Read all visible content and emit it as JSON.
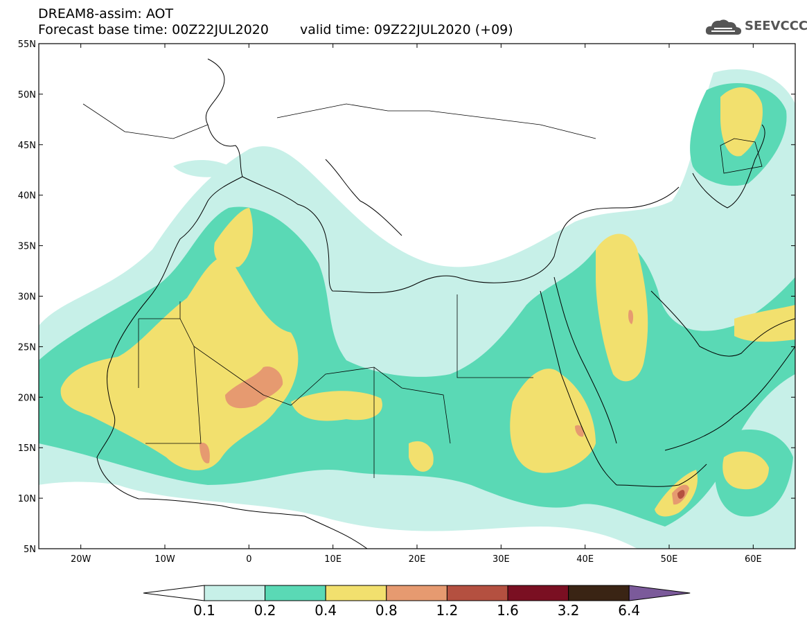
{
  "header": {
    "line1": "DREAM8-assim: AOT",
    "base_time": "Forecast base time: 00Z22JUL2020",
    "valid_time": "valid time: 09Z22JUL2020 (+09)"
  },
  "logo": {
    "text": "SEEVCCC",
    "icon": "cloud-icon"
  },
  "map": {
    "lon_range": [
      -25,
      65
    ],
    "lat_range": [
      5,
      55
    ],
    "lat_ticks": [
      {
        "value": 55,
        "label": "55N"
      },
      {
        "value": 50,
        "label": "50N"
      },
      {
        "value": 45,
        "label": "45N"
      },
      {
        "value": 40,
        "label": "40N"
      },
      {
        "value": 35,
        "label": "35N"
      },
      {
        "value": 30,
        "label": "30N"
      },
      {
        "value": 25,
        "label": "25N"
      },
      {
        "value": 20,
        "label": "20N"
      },
      {
        "value": 15,
        "label": "15N"
      },
      {
        "value": 10,
        "label": "10N"
      },
      {
        "value": 5,
        "label": "5N"
      }
    ],
    "lon_ticks": [
      {
        "value": -20,
        "label": "20W"
      },
      {
        "value": -10,
        "label": "10W"
      },
      {
        "value": 0,
        "label": "0"
      },
      {
        "value": 10,
        "label": "10E"
      },
      {
        "value": 20,
        "label": "20E"
      },
      {
        "value": 30,
        "label": "30E"
      },
      {
        "value": 40,
        "label": "40E"
      },
      {
        "value": 50,
        "label": "50E"
      },
      {
        "value": 60,
        "label": "60E"
      }
    ]
  },
  "colorbar": {
    "levels": [
      "0.1",
      "0.2",
      "0.4",
      "0.8",
      "1.2",
      "1.6",
      "3.2",
      "6.4"
    ],
    "colors": [
      "#ffffff",
      "#c7f0e8",
      "#5ad9b5",
      "#f2e06e",
      "#e69a70",
      "#b45040",
      "#7a0f22",
      "#3a2414",
      "#7b5a9a"
    ]
  }
}
